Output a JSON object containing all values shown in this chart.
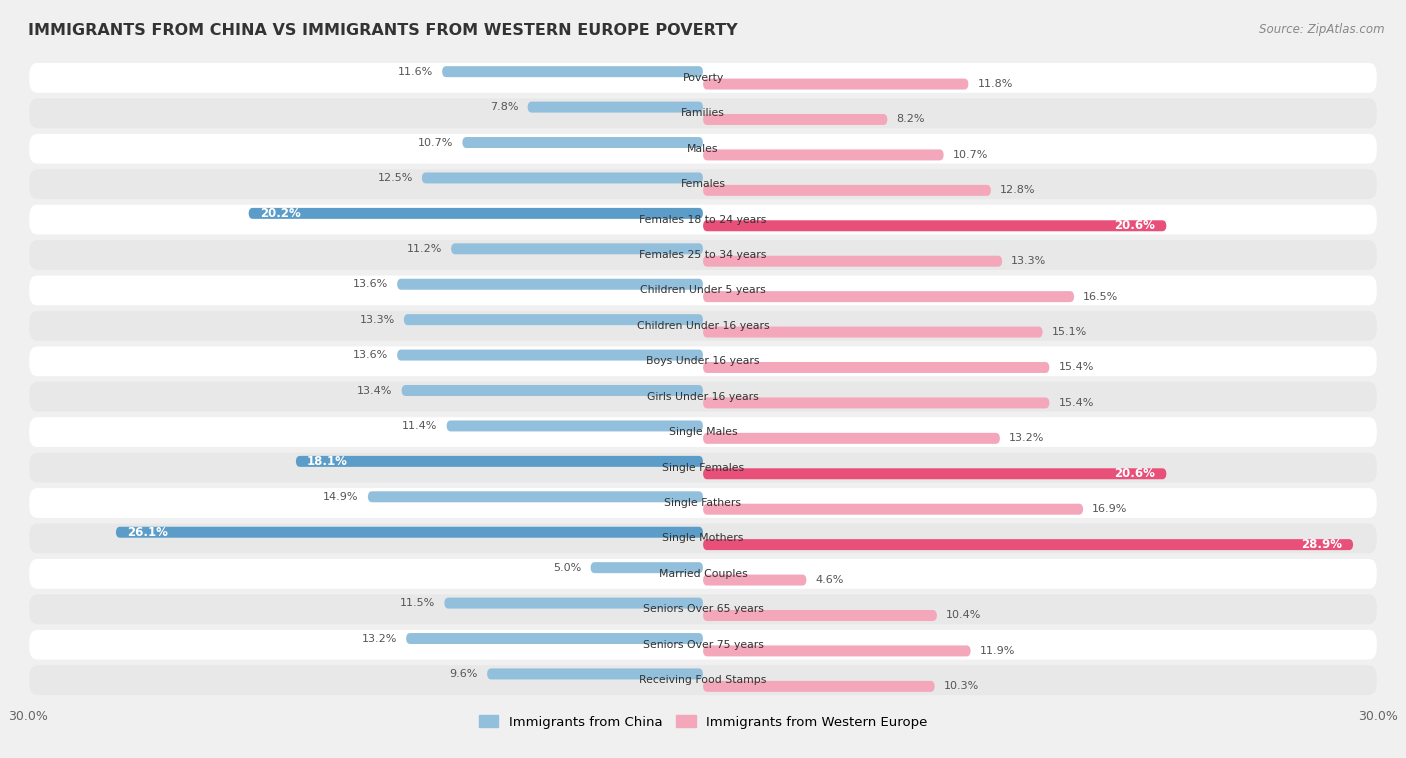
{
  "title": "IMMIGRANTS FROM CHINA VS IMMIGRANTS FROM WESTERN EUROPE POVERTY",
  "source": "Source: ZipAtlas.com",
  "categories": [
    "Poverty",
    "Families",
    "Males",
    "Females",
    "Females 18 to 24 years",
    "Females 25 to 34 years",
    "Children Under 5 years",
    "Children Under 16 years",
    "Boys Under 16 years",
    "Girls Under 16 years",
    "Single Males",
    "Single Females",
    "Single Fathers",
    "Single Mothers",
    "Married Couples",
    "Seniors Over 65 years",
    "Seniors Over 75 years",
    "Receiving Food Stamps"
  ],
  "china_values": [
    11.6,
    7.8,
    10.7,
    12.5,
    20.2,
    11.2,
    13.6,
    13.3,
    13.6,
    13.4,
    11.4,
    18.1,
    14.9,
    26.1,
    5.0,
    11.5,
    13.2,
    9.6
  ],
  "europe_values": [
    11.8,
    8.2,
    10.7,
    12.8,
    20.6,
    13.3,
    16.5,
    15.1,
    15.4,
    15.4,
    13.2,
    20.6,
    16.9,
    28.9,
    4.6,
    10.4,
    11.9,
    10.3
  ],
  "china_color_normal": "#92c0dc",
  "china_color_highlight": "#5b9dc8",
  "europe_color_normal": "#f4a7bb",
  "europe_color_highlight": "#e8507a",
  "highlight_rows": [
    4,
    11,
    13
  ],
  "xlim": 30.0,
  "bar_height": 0.62,
  "background_color": "#f0f0f0",
  "row_bg_color": "#ffffff",
  "row_alt_color": "#e8e8e8",
  "legend_china": "Immigrants from China",
  "legend_europe": "Immigrants from Western Europe"
}
